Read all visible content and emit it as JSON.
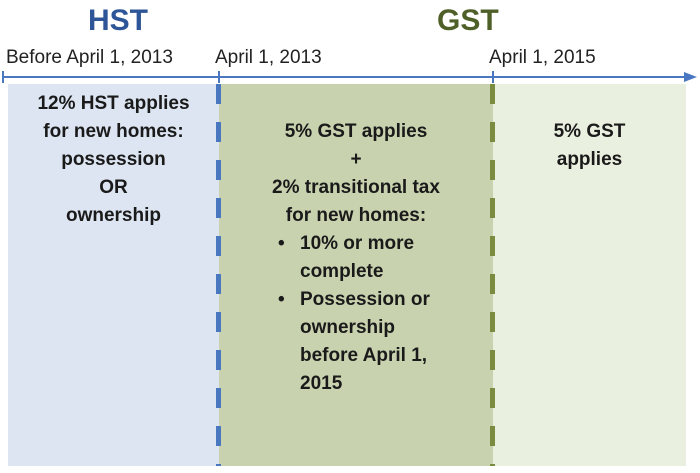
{
  "headings": {
    "hst": "HST",
    "gst": "GST"
  },
  "timeline": {
    "dates": [
      "Before April 1, 2013",
      "April 1, 2013",
      "April 1, 2015"
    ]
  },
  "periods": {
    "hst": {
      "lines": [
        "12% HST applies",
        "for new homes:",
        "possession",
        "OR",
        "ownership"
      ]
    },
    "transition": {
      "lines": [
        "5% GST applies",
        "+",
        "2% transitional tax",
        "for new homes:"
      ],
      "bullets": [
        [
          "10% or more",
          "complete"
        ],
        [
          "Possession or",
          "ownership",
          "before April 1,",
          "2015"
        ]
      ]
    },
    "gst": {
      "lines": [
        "5% GST",
        "applies"
      ]
    }
  },
  "colors": {
    "hst_heading": "#2e5597",
    "gst_heading": "#4e5f27",
    "timeline": "#4a78c0",
    "hst_bg": "#dce5f1",
    "transition_bg": "#c8d2ae",
    "gst_bg": "#eaf0df"
  }
}
